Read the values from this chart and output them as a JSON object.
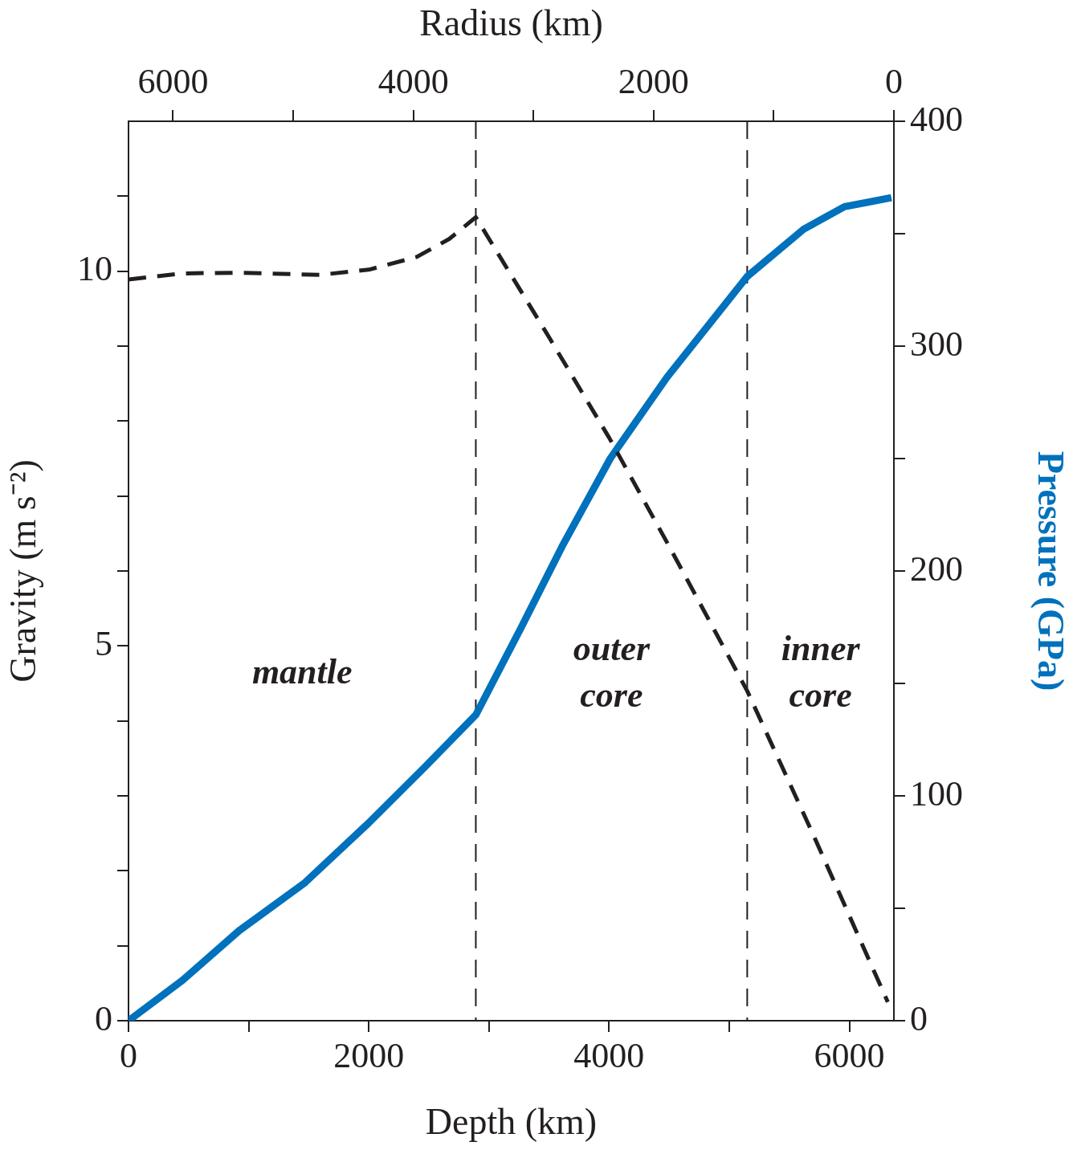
{
  "chart_data": {
    "type": "line",
    "xlabel": "Depth (km)",
    "ylabel": "Gravity (m s⁻²)",
    "y2label": "Pressure (GPa)",
    "x2label": "Radius (km)",
    "xlim": [
      0,
      6371
    ],
    "xticks": [
      0,
      {
        "value": 1000,
        "label": null
      },
      2000,
      {
        "value": 3000,
        "label": null
      },
      4000,
      {
        "value": 5000,
        "label": null
      },
      6000
    ],
    "x2lim": [
      6371,
      0
    ],
    "x2ticks": [
      6000,
      {
        "value": 5000,
        "label": null
      },
      4000,
      {
        "value": 3000,
        "label": null
      },
      2000,
      {
        "value": 1000,
        "label": null
      },
      0
    ],
    "ylim": [
      0,
      12
    ],
    "yticks": [
      0,
      {
        "value": 1,
        "label": null
      },
      {
        "value": 2,
        "label": null
      },
      {
        "value": 3,
        "label": null
      },
      {
        "value": 4,
        "label": null
      },
      5,
      {
        "value": 6,
        "label": null
      },
      {
        "value": 7,
        "label": null
      },
      {
        "value": 8,
        "label": null
      },
      {
        "value": 9,
        "label": null
      },
      10,
      {
        "value": 11,
        "label": null
      }
    ],
    "y2lim": [
      0,
      400
    ],
    "y2ticks": [
      0,
      {
        "value": 50,
        "label": null
      },
      100,
      {
        "value": 150,
        "label": null
      },
      200,
      {
        "value": 250,
        "label": null
      },
      300,
      {
        "value": 350,
        "label": null
      },
      400
    ],
    "series": [
      {
        "color": "#231f20",
        "line_style": "dashed",
        "x": [
          0,
          450,
          920,
          1590,
          2000,
          2400,
          2670,
          2891,
          3500,
          4000,
          4500,
          5150,
          5700,
          6320
        ],
        "values": [
          9.89,
          9.97,
          9.98,
          9.95,
          10.02,
          10.19,
          10.43,
          10.72,
          9.12,
          7.78,
          6.33,
          4.4,
          2.48,
          0.25
        ]
      },
      {
        "color": "#0071bc",
        "axis": "y2",
        "x": [
          0,
          450,
          920,
          1460,
          2000,
          2470,
          2891,
          3270,
          3610,
          4010,
          4480,
          5150,
          5620,
          5960,
          6350
        ],
        "values": [
          0,
          18,
          40,
          61,
          88,
          113,
          136,
          175,
          211,
          250,
          286,
          331,
          352,
          362,
          366
        ]
      }
    ],
    "ref_lines": [
      {
        "axis": "x",
        "value": 2891,
        "color": "#231f20",
        "line_style": "dashed"
      },
      {
        "axis": "x",
        "value": 5150,
        "color": "#231f20",
        "line_style": "dashed"
      }
    ],
    "annotations": [
      "mantle",
      "outer core",
      "inner core"
    ]
  }
}
